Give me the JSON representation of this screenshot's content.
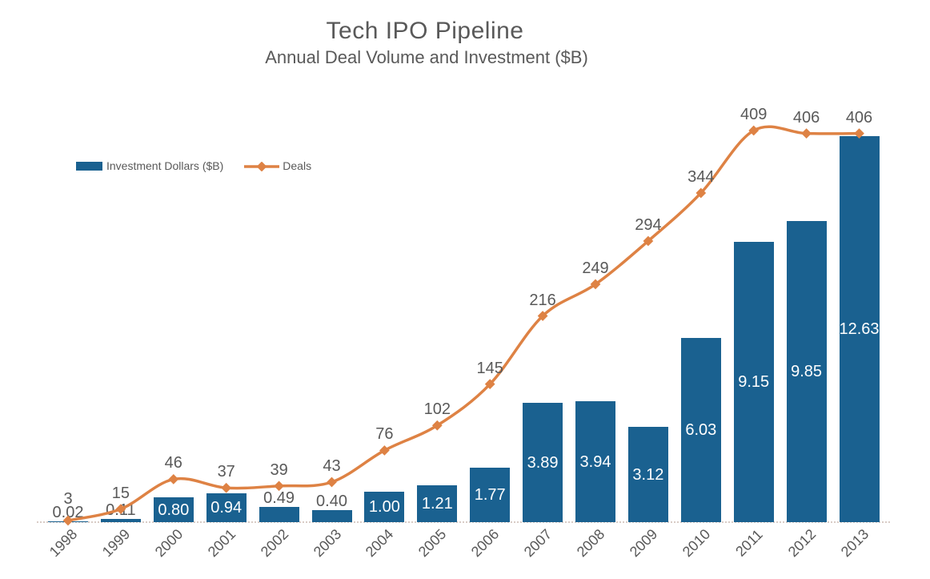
{
  "header": {
    "title": "Tech IPO Pipeline",
    "subtitle": "Annual Deal Volume and Investment ($B)"
  },
  "legend": {
    "investment_label": "Investment Dollars ($B)",
    "deals_label": "Deals"
  },
  "colors": {
    "bar": "#1A6190",
    "line": "#DE8244",
    "text_gray": "#595959",
    "inside_label": "#FFFFFF",
    "baseline_dotted": "#D8CBC5"
  },
  "chart_data": {
    "type": "combo-bar-line",
    "title": "Tech IPO Pipeline",
    "subtitle": "Annual Deal Volume and Investment ($B)",
    "categories": [
      "1998",
      "1999",
      "2000",
      "2001",
      "2002",
      "2003",
      "2004",
      "2005",
      "2006",
      "2007",
      "2008",
      "2009",
      "2010",
      "2011",
      "2012",
      "2013"
    ],
    "series": [
      {
        "name": "Investment Dollars ($B)",
        "type": "bar",
        "color": "#1A6190",
        "values": [
          0.02,
          0.11,
          0.8,
          0.94,
          0.49,
          0.4,
          1.0,
          1.21,
          1.77,
          3.89,
          3.94,
          3.12,
          6.03,
          9.15,
          9.85,
          12.63
        ],
        "value_labels": [
          "0.02",
          "0.11",
          "0.80",
          "0.94",
          "0.49",
          "0.40",
          "1.00",
          "1.21",
          "1.77",
          "3.89",
          "3.94",
          "3.12",
          "6.03",
          "9.15",
          "9.85",
          "12.63"
        ]
      },
      {
        "name": "Deals",
        "type": "line",
        "color": "#DE8244",
        "marker": "diamond",
        "smooth": true,
        "values": [
          3,
          15,
          46,
          37,
          39,
          43,
          76,
          102,
          145,
          216,
          249,
          294,
          344,
          409,
          406,
          406
        ],
        "value_labels": [
          "3",
          "15",
          "46",
          "37",
          "39",
          "43",
          "76",
          "102",
          "145",
          "216",
          "249",
          "294",
          "344",
          "409",
          "406",
          "406"
        ]
      }
    ],
    "xlabel": "",
    "ylabel": "",
    "bar_axis_range": [
      0,
      13
    ],
    "deals_axis_range": [
      0,
      450
    ],
    "gridlines": false,
    "y_axes_visible": false,
    "x_labels_rotation_deg": -45,
    "legend_position": "top-left",
    "data_labels": "all points labeled"
  }
}
